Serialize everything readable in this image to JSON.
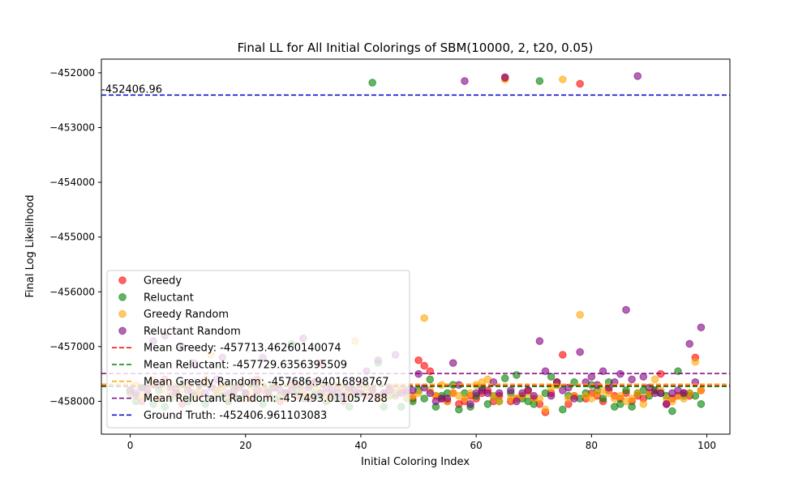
{
  "chart_data": {
    "type": "scatter",
    "title": "Final LL for All Initial Colorings of SBM(10000, 2, t20, 0.05)",
    "xlabel": "Initial Coloring Index",
    "ylabel": "Final Log Likelihood",
    "xlim": [
      -5,
      104
    ],
    "ylim": [
      -458600,
      -451750
    ],
    "x_ticks": [
      0,
      20,
      40,
      60,
      80,
      100
    ],
    "x_tick_labels": [
      "0",
      "20",
      "40",
      "60",
      "80",
      "100"
    ],
    "y_ticks": [
      -458000,
      -457000,
      -456000,
      -455000,
      -454000,
      -453000,
      -452000
    ],
    "y_tick_labels": [
      "−458000",
      "−457000",
      "−456000",
      "−455000",
      "−454000",
      "−453000",
      "−452000"
    ],
    "legend_position": "lower left",
    "annotation": {
      "text": "-452406.96",
      "x": -5,
      "y": -452406.96,
      "color": "#0000ff"
    },
    "series": [
      {
        "name": "Greedy",
        "color": "#ff0000",
        "x": [
          0,
          1,
          2,
          3,
          4,
          5,
          6,
          7,
          8,
          9,
          10,
          11,
          12,
          13,
          14,
          15,
          16,
          17,
          18,
          19,
          20,
          21,
          22,
          23,
          24,
          25,
          26,
          27,
          28,
          29,
          30,
          31,
          32,
          33,
          34,
          35,
          36,
          37,
          38,
          39,
          40,
          41,
          42,
          43,
          44,
          45,
          46,
          47,
          48,
          49,
          50,
          51,
          52,
          53,
          54,
          55,
          56,
          57,
          58,
          59,
          60,
          61,
          62,
          63,
          64,
          65,
          66,
          67,
          68,
          69,
          70,
          71,
          72,
          73,
          74,
          75,
          76,
          77,
          78,
          79,
          80,
          81,
          82,
          83,
          84,
          85,
          86,
          87,
          88,
          89,
          90,
          91,
          92,
          93,
          94,
          95,
          96,
          97,
          98,
          99
        ],
        "y": [
          -457800,
          -457900,
          -458000,
          -457850,
          -457700,
          -457950,
          -457600,
          -457900,
          -457800,
          -458050,
          -457700,
          -457850,
          -457900,
          -457650,
          -457950,
          -457800,
          -457750,
          -458000,
          -457900,
          -457700,
          -457850,
          -457950,
          -457600,
          -457800,
          -457900,
          -457750,
          -458000,
          -457850,
          -457700,
          -457900,
          -457800,
          -457950,
          -457650,
          -457300,
          -457850,
          -457900,
          -457750,
          -458000,
          -457800,
          -457850,
          -457700,
          -457900,
          -457800,
          -457950,
          -457850,
          -457750,
          -457900,
          -457800,
          -457850,
          -457950,
          -457250,
          -457350,
          -457450,
          -457900,
          -457950,
          -458000,
          -457850,
          -458050,
          -458000,
          -457900,
          -457950,
          -457850,
          -457800,
          -458000,
          -457900,
          -452100,
          -458000,
          -457950,
          -457900,
          -457800,
          -457950,
          -458050,
          -458200,
          -457850,
          -457650,
          -457150,
          -458050,
          -457900,
          -452200,
          -457950,
          -457850,
          -457900,
          -458000,
          -457800,
          -457900,
          -457950,
          -457850,
          -458000,
          -457900,
          -457950,
          -457850,
          -457800,
          -457500,
          -458050,
          -457950,
          -457900,
          -457850,
          -457900,
          -457200,
          -457800
        ]
      },
      {
        "name": "Reluctant",
        "color": "#008000",
        "x": [
          0,
          1,
          2,
          3,
          4,
          5,
          6,
          7,
          8,
          9,
          10,
          11,
          12,
          13,
          14,
          15,
          16,
          17,
          18,
          19,
          20,
          21,
          22,
          23,
          24,
          25,
          26,
          27,
          28,
          29,
          30,
          31,
          32,
          33,
          34,
          35,
          36,
          37,
          38,
          39,
          40,
          41,
          42,
          43,
          44,
          45,
          46,
          47,
          48,
          49,
          50,
          51,
          52,
          53,
          54,
          55,
          56,
          57,
          58,
          59,
          60,
          61,
          62,
          63,
          64,
          65,
          66,
          67,
          68,
          69,
          70,
          71,
          72,
          73,
          74,
          75,
          76,
          77,
          78,
          79,
          80,
          81,
          82,
          83,
          84,
          85,
          86,
          87,
          88,
          89,
          90,
          91,
          92,
          93,
          94,
          95,
          96,
          97,
          98,
          99
        ],
        "y": [
          -457850,
          -458000,
          -457750,
          -457900,
          -458050,
          -457800,
          -458100,
          -457950,
          -457850,
          -457700,
          -458000,
          -457900,
          -457800,
          -458050,
          -457950,
          -457850,
          -457900,
          -458000,
          -457750,
          -457950,
          -457850,
          -457700,
          -457900,
          -458050,
          -457800,
          -457950,
          -457900,
          -457850,
          -456950,
          -457800,
          -457950,
          -457700,
          -457850,
          -457900,
          -458000,
          -457850,
          -457950,
          -457800,
          -458100,
          -457950,
          -457850,
          -457750,
          -452180,
          -457300,
          -458100,
          -457900,
          -457850,
          -458100,
          -457950,
          -458000,
          -457800,
          -457950,
          -457600,
          -458100,
          -457900,
          -457850,
          -457700,
          -458150,
          -457850,
          -458100,
          -457900,
          -457750,
          -458050,
          -457900,
          -458000,
          -457580,
          -457850,
          -457520,
          -457950,
          -458000,
          -458050,
          -452150,
          -457850,
          -457550,
          -457700,
          -458150,
          -457900,
          -457650,
          -457950,
          -457850,
          -457700,
          -457800,
          -457950,
          -457650,
          -458100,
          -458050,
          -457800,
          -458100,
          -457850,
          -457800,
          -457900,
          -457800,
          -457850,
          -457900,
          -458180,
          -457450,
          -457900,
          -457850,
          -457900,
          -458050
        ]
      },
      {
        "name": "Greedy Random",
        "color": "#ffa500",
        "x": [
          0,
          1,
          2,
          3,
          4,
          5,
          6,
          7,
          8,
          9,
          10,
          11,
          12,
          13,
          14,
          15,
          16,
          17,
          18,
          19,
          20,
          21,
          22,
          23,
          24,
          25,
          26,
          27,
          28,
          29,
          30,
          31,
          32,
          33,
          34,
          35,
          36,
          37,
          38,
          39,
          40,
          41,
          42,
          43,
          44,
          45,
          46,
          47,
          48,
          49,
          50,
          51,
          52,
          53,
          54,
          55,
          56,
          57,
          58,
          59,
          60,
          61,
          62,
          63,
          64,
          65,
          66,
          67,
          68,
          69,
          70,
          71,
          72,
          73,
          74,
          75,
          76,
          77,
          78,
          79,
          80,
          81,
          82,
          83,
          84,
          85,
          86,
          87,
          88,
          89,
          90,
          91,
          92,
          93,
          94,
          95,
          96,
          97,
          98,
          99
        ],
        "y": [
          -457800,
          -457700,
          -457900,
          -457850,
          -457600,
          -457950,
          -457800,
          -457700,
          -457900,
          -457850,
          -457750,
          -457950,
          -457800,
          -457600,
          -457150,
          -457850,
          -457750,
          -457900,
          -457800,
          -457700,
          -457950,
          -457800,
          -457850,
          -457700,
          -457900,
          -457750,
          -457850,
          -457950,
          -457800,
          -457700,
          -457850,
          -457900,
          -457750,
          -457800,
          -457950,
          -457850,
          -457700,
          -457800,
          -457900,
          -456900,
          -457850,
          -457750,
          -457800,
          -457900,
          -457950,
          -457850,
          -457800,
          -457750,
          -457950,
          -457900,
          -457850,
          -456480,
          -457800,
          -457900,
          -457700,
          -458000,
          -457850,
          -457900,
          -457950,
          -457850,
          -457700,
          -457650,
          -457600,
          -457900,
          -458000,
          -452120,
          -457950,
          -457950,
          -457900,
          -457850,
          -457950,
          -457950,
          -458150,
          -457750,
          -457700,
          -452120,
          -457950,
          -457900,
          -456420,
          -457900,
          -457950,
          -457850,
          -457800,
          -457850,
          -457950,
          -457900,
          -458000,
          -457950,
          -457850,
          -458050,
          -457850,
          -457600,
          -457800,
          -457950,
          -458000,
          -457900,
          -457950,
          -457850,
          -457280,
          -457800
        ]
      },
      {
        "name": "Reluctant Random",
        "color": "#800080",
        "x": [
          0,
          1,
          2,
          3,
          4,
          5,
          6,
          7,
          8,
          9,
          10,
          11,
          12,
          13,
          14,
          15,
          16,
          17,
          18,
          19,
          20,
          21,
          22,
          23,
          24,
          25,
          26,
          27,
          28,
          29,
          30,
          31,
          32,
          33,
          34,
          35,
          36,
          37,
          38,
          39,
          40,
          41,
          42,
          43,
          44,
          45,
          46,
          47,
          48,
          49,
          50,
          51,
          52,
          53,
          54,
          55,
          56,
          57,
          58,
          59,
          60,
          61,
          62,
          63,
          64,
          65,
          66,
          67,
          68,
          69,
          70,
          71,
          72,
          73,
          74,
          75,
          76,
          77,
          78,
          79,
          80,
          81,
          82,
          83,
          84,
          85,
          86,
          87,
          88,
          89,
          90,
          91,
          92,
          93,
          94,
          95,
          96,
          97,
          98,
          99
        ],
        "y": [
          -457800,
          -457850,
          -457750,
          -457800,
          -456900,
          -457700,
          -456800,
          -457750,
          -457850,
          -457000,
          -457800,
          -457300,
          -457700,
          -457850,
          -457750,
          -457600,
          -457200,
          -457850,
          -457800,
          -457750,
          -457850,
          -457650,
          -457800,
          -457200,
          -457850,
          -457750,
          -457800,
          -457850,
          -457800,
          -457700,
          -456850,
          -457750,
          -457650,
          -457850,
          -457750,
          -457800,
          -457850,
          -457900,
          -457750,
          -457800,
          -457850,
          -457450,
          -457800,
          -457250,
          -457850,
          -457800,
          -457150,
          -457850,
          -457800,
          -457800,
          -457500,
          -457750,
          -457850,
          -458000,
          -457950,
          -457950,
          -457300,
          -457700,
          -452150,
          -458050,
          -457850,
          -457800,
          -457850,
          -457650,
          -457850,
          -452080,
          -457800,
          -458000,
          -457850,
          -457800,
          -457900,
          -456900,
          -457450,
          -457900,
          -457650,
          -457800,
          -457750,
          -457950,
          -457100,
          -457650,
          -457550,
          -457700,
          -457450,
          -457750,
          -457650,
          -457500,
          -456330,
          -457600,
          -452060,
          -457550,
          -457750,
          -457850,
          -457850,
          -458050,
          -457850,
          -457800,
          -457850,
          -456950,
          -457650,
          -456650
        ]
      }
    ],
    "hlines": [
      {
        "label": "Mean Greedy: -457713.46260140074",
        "y": -457713.46260140074,
        "color": "#ff0000"
      },
      {
        "label": "Mean Reluctant: -457729.6356395509",
        "y": -457729.6356395509,
        "color": "#008000"
      },
      {
        "label": "Mean Greedy Random: -457686.94016898767",
        "y": -457686.94016898767,
        "color": "#ffa500"
      },
      {
        "label": "Mean Reluctant Random: -457493.011057288",
        "y": -457493.011057288,
        "color": "#800080"
      },
      {
        "label": "Ground Truth: -452406.961103083",
        "y": -452406.961103083,
        "color": "#0000cc"
      }
    ]
  }
}
